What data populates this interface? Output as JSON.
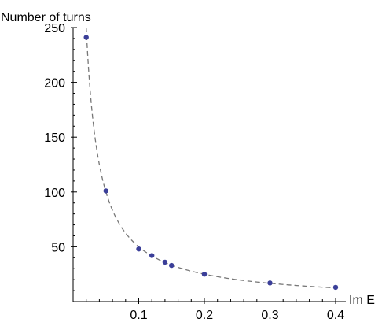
{
  "chart_data": {
    "type": "scatter",
    "title": "",
    "xlabel": "Im E",
    "ylabel": "Number of turns",
    "xlim": [
      0,
      0.4
    ],
    "ylim": [
      0,
      250
    ],
    "x_ticks": [
      0.1,
      0.2,
      0.3,
      0.4
    ],
    "y_ticks": [
      50,
      100,
      150,
      200,
      250
    ],
    "grid": false,
    "colors": {
      "points": "#3b3f99",
      "fit_line": "#777777",
      "axes": "#000000"
    },
    "series": [
      {
        "values": [
          {
            "x": 0.02,
            "y": 241
          },
          {
            "x": 0.05,
            "y": 101
          },
          {
            "x": 0.1,
            "y": 48
          },
          {
            "x": 0.12,
            "y": 42
          },
          {
            "x": 0.14,
            "y": 36
          },
          {
            "x": 0.15,
            "y": 33
          },
          {
            "x": 0.2,
            "y": 25
          },
          {
            "x": 0.3,
            "y": 17
          },
          {
            "x": 0.4,
            "y": 13
          }
        ]
      }
    ],
    "fit_curve": {
      "style": "dashed",
      "formula": "y = 5/x",
      "x_range": [
        0.02,
        0.4
      ]
    }
  }
}
